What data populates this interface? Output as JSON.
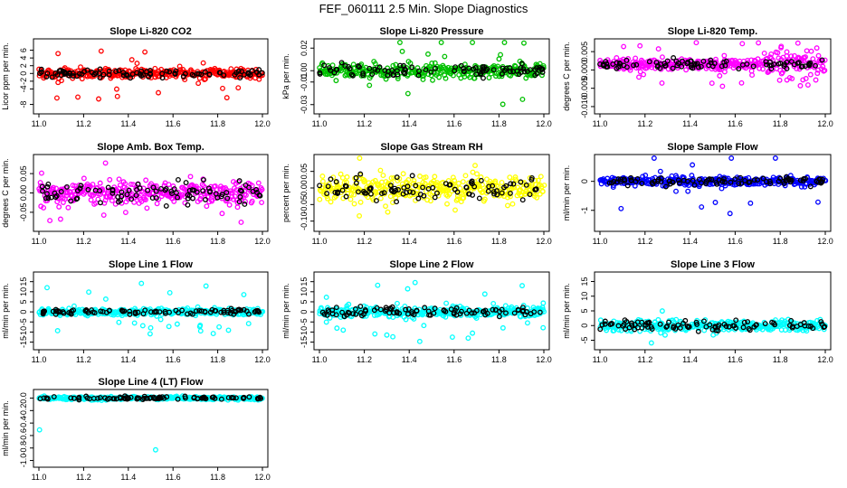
{
  "figure": {
    "title": "FEF_060111  2.5 Min. Slope Diagnostics"
  },
  "chart_data": [
    {
      "type": "scatter",
      "title": "Slope Li-820 CO2",
      "xlabel": "",
      "ylabel": "Licor ppm per min.",
      "xlim": [
        11.0,
        12.0
      ],
      "ylim": [
        -9.5,
        8
      ],
      "xticks": [
        "11.0",
        "11.2",
        "11.4",
        "11.6",
        "11.8",
        "12.0"
      ],
      "yticks": [
        "-8",
        "-4",
        "-2",
        "0",
        "2",
        "4",
        "6"
      ],
      "color": "#ff0000",
      "grid": false,
      "center": 0,
      "spread": 1.2,
      "outliers": 30,
      "outlier_range": 7,
      "series": [
        {
          "color": "#ff0000",
          "description": "colored points, dense band around 0 with scattered outliers to about +7 and -8"
        },
        {
          "color": "#000000",
          "description": "black points along 0"
        }
      ]
    },
    {
      "type": "scatter",
      "title": "Slope Li-820 Pressure",
      "xlabel": "",
      "ylabel": "kPa per min.",
      "xlim": [
        11.0,
        12.0
      ],
      "ylim": [
        -0.035,
        0.025
      ],
      "xticks": [
        "11.0",
        "11.2",
        "11.4",
        "11.6",
        "11.8",
        "12.0"
      ],
      "yticks": [
        "-0.03",
        "-0.01",
        "0.00",
        "0.02"
      ],
      "color": "#00c000",
      "grid": false,
      "center": 0.0,
      "spread": 0.006,
      "outliers": 20,
      "outlier_range": 0.03,
      "series": [
        {
          "color": "#00c000",
          "description": "colored points, band around 0 with outliers to about -0.03"
        },
        {
          "color": "#000000",
          "description": "black points"
        }
      ]
    },
    {
      "type": "scatter",
      "title": "Slope Li-820 Temp.",
      "xlabel": "",
      "ylabel": "degrees C per min.",
      "xlim": [
        11.0,
        12.0
      ],
      "ylim": [
        -0.011,
        0.0075
      ],
      "xticks": [
        "11.0",
        "11.2",
        "11.4",
        "11.6",
        "11.8",
        "12.0"
      ],
      "yticks": [
        "-0.010",
        "-0.005",
        "0.000",
        "0.005"
      ],
      "color": "#ff00ff",
      "grid": false,
      "center": 0.0015,
      "spread": 0.0015,
      "outliers": 40,
      "outlier_range": 0.006,
      "series": [
        {
          "color": "#ff00ff",
          "description": "colored points, band near 0.002 widening after 11.7"
        },
        {
          "color": "#000000",
          "description": "black points"
        }
      ]
    },
    {
      "type": "scatter",
      "title": "Slope Amb. Box Temp.",
      "xlabel": "",
      "ylabel": "degrees C per min.",
      "xlim": [
        11.0,
        12.0
      ],
      "ylim": [
        -0.09,
        0.09
      ],
      "xticks": [
        "11.0",
        "11.2",
        "11.4",
        "11.6",
        "11.8",
        "12.0"
      ],
      "yticks": [
        "-0.05",
        "0.00",
        "0.05"
      ],
      "color": "#ff00ff",
      "grid": false,
      "center": 0.0,
      "spread": 0.03,
      "outliers": 20,
      "outlier_range": 0.08,
      "series": [
        {
          "color": "#ff00ff",
          "description": "colored points spread between about -0.08 and 0.08"
        },
        {
          "color": "#000000",
          "description": "black points"
        }
      ]
    },
    {
      "type": "scatter",
      "title": "Slope Gas Stream RH",
      "xlabel": "",
      "ylabel": "percent per min.",
      "xlim": [
        11.0,
        12.0
      ],
      "ylim": [
        -0.12,
        0.09
      ],
      "xticks": [
        "11.0",
        "11.2",
        "11.4",
        "11.6",
        "11.8",
        "12.0"
      ],
      "yticks": [
        "-0.10",
        "-0.05",
        "0.00",
        "0.05"
      ],
      "color": "#ffff00",
      "grid": false,
      "center": 0.0,
      "spread": 0.035,
      "outliers": 20,
      "outlier_range": 0.1,
      "series": [
        {
          "color": "#ffff00",
          "description": "colored points spread between about -0.11 and 0.08"
        },
        {
          "color": "#000000",
          "description": "black points"
        }
      ]
    },
    {
      "type": "scatter",
      "title": "Slope Sample Flow",
      "xlabel": "",
      "ylabel": "ml/min per min.",
      "xlim": [
        11.0,
        12.0
      ],
      "ylim": [
        -1.6,
        0.8
      ],
      "xticks": [
        "11.0",
        "11.2",
        "11.4",
        "11.6",
        "11.8",
        "12.0"
      ],
      "yticks": [
        "-1",
        "0"
      ],
      "color": "#0000ff",
      "grid": false,
      "center": 0.0,
      "spread": 0.15,
      "outliers": 20,
      "outlier_range": 1.2,
      "series": [
        {
          "color": "#0000ff",
          "description": "colored points, dense band near 0 with outliers to about -1.5 and 0.7"
        },
        {
          "color": "#000000",
          "description": "black points"
        }
      ]
    },
    {
      "type": "scatter",
      "title": "Slope Line 1 Flow",
      "xlabel": "",
      "ylabel": "ml/min per min.",
      "xlim": [
        11.0,
        12.0
      ],
      "ylim": [
        -17,
        18
      ],
      "xticks": [
        "11.0",
        "11.2",
        "11.4",
        "11.6",
        "11.8",
        "12.0"
      ],
      "yticks": [
        "-15",
        "-10",
        "-5",
        "0",
        "5",
        "10",
        "15"
      ],
      "color": "#00ffff",
      "grid": false,
      "center": 0,
      "spread": 1.5,
      "outliers": 30,
      "outlier_range": 15,
      "series": [
        {
          "color": "#00ffff",
          "description": "colored points, band around 0 with outliers to about ±15"
        },
        {
          "color": "#000000",
          "description": "black points along 0"
        }
      ]
    },
    {
      "type": "scatter",
      "title": "Slope Line 2 Flow",
      "xlabel": "",
      "ylabel": "ml/min per min.",
      "xlim": [
        11.0,
        12.0
      ],
      "ylim": [
        -17,
        18
      ],
      "xticks": [
        "11.0",
        "11.2",
        "11.4",
        "11.6",
        "11.8",
        "12.0"
      ],
      "yticks": [
        "-15",
        "-10",
        "-5",
        "0",
        "5",
        "10",
        "15"
      ],
      "color": "#00ffff",
      "grid": false,
      "center": 0,
      "spread": 2.5,
      "outliers": 30,
      "outlier_range": 15,
      "series": [
        {
          "color": "#00ffff",
          "description": "colored points, band around 0 with outliers to about ±15"
        },
        {
          "color": "#000000",
          "description": "black points"
        }
      ]
    },
    {
      "type": "scatter",
      "title": "Slope Line 3 Flow",
      "xlabel": "",
      "ylabel": "ml/min per min.",
      "xlim": [
        11.0,
        12.0
      ],
      "ylim": [
        -7,
        17
      ],
      "xticks": [
        "11.0",
        "11.2",
        "11.4",
        "11.6",
        "11.8",
        "12.0"
      ],
      "yticks": [
        "-5",
        "0",
        "5",
        "10",
        "15"
      ],
      "color": "#00ffff",
      "grid": false,
      "center": 0,
      "spread": 1.8,
      "outliers": 8,
      "outlier_range": 6,
      "series": [
        {
          "color": "#00ffff",
          "description": "colored points, band around 0 from about -5 to 5, outliers to 16"
        },
        {
          "color": "#000000",
          "description": "black points"
        }
      ]
    },
    {
      "type": "scatter",
      "title": "Slope Line 4 (LT) Flow",
      "xlabel": "",
      "ylabel": "ml/min per min.",
      "xlim": [
        11.0,
        12.0
      ],
      "ylim": [
        -1.05,
        0.08
      ],
      "xticks": [
        "11.0",
        "11.2",
        "11.4",
        "11.6",
        "11.8",
        "12.0"
      ],
      "yticks": [
        "-1.0",
        "-0.8",
        "-0.6",
        "-0.4",
        "-0.2",
        "0.0"
      ],
      "color": "#00ffff",
      "grid": false,
      "center": 0.0,
      "spread": 0.025,
      "outliers": 2,
      "outlier_range": 1.0,
      "series": [
        {
          "color": "#00ffff",
          "description": "colored points near 0 with two outliers near -1.0"
        },
        {
          "color": "#000000",
          "description": "black points near 0"
        }
      ]
    }
  ]
}
